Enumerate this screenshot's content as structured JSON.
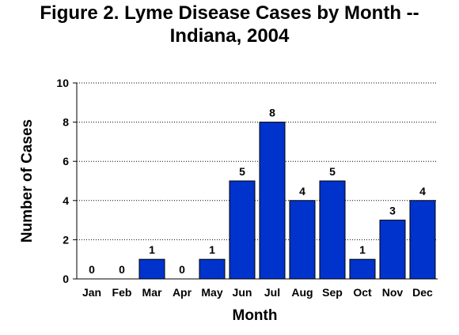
{
  "title_line1": "Figure 2. Lyme Disease Cases by Month --",
  "title_line2": "Indiana, 2004",
  "chart_data": {
    "type": "bar",
    "title": "Figure 2. Lyme Disease Cases by Month -- Indiana, 2004",
    "xlabel": "Month",
    "ylabel": "Number of Cases",
    "categories": [
      "Jan",
      "Feb",
      "Mar",
      "Apr",
      "May",
      "Jun",
      "Jul",
      "Aug",
      "Sep",
      "Oct",
      "Nov",
      "Dec"
    ],
    "values": [
      0,
      0,
      1,
      0,
      1,
      5,
      8,
      4,
      5,
      1,
      3,
      4
    ],
    "ylim": [
      0,
      10
    ],
    "yticks": [
      0,
      2,
      4,
      6,
      8,
      10
    ],
    "grid": "horizontal dotted",
    "bar_color": "#0033cc",
    "data_labels": true
  }
}
